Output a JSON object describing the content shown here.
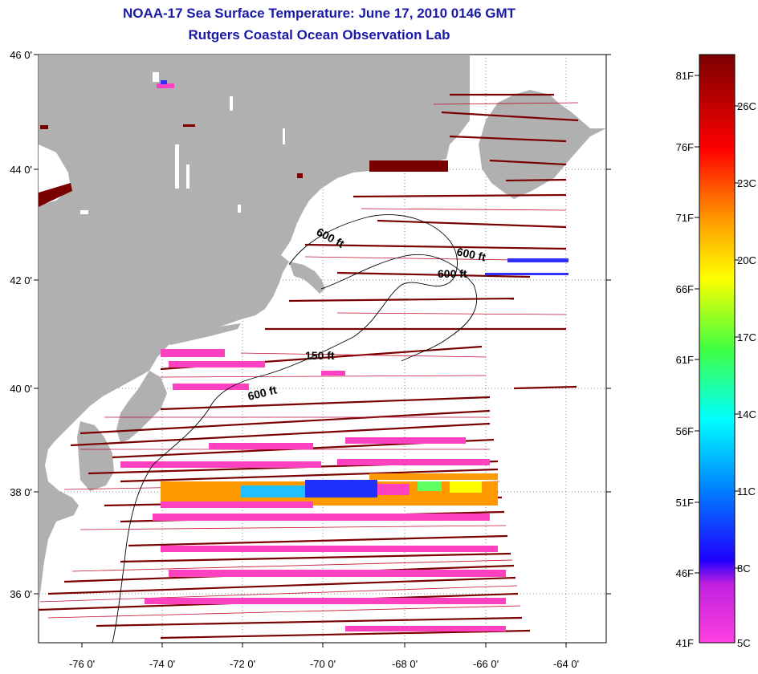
{
  "title": {
    "line1": "NOAA-17 Sea Surface Temperature:  June 17, 2010 0146 GMT",
    "line2": "Rutgers Coastal Ocean Observation Lab"
  },
  "map": {
    "lat_ticks": [
      "46 0'",
      "44 0'",
      "42 0'",
      "40 0'",
      "38 0'",
      "36 0'"
    ],
    "lon_ticks": [
      "-76 0'",
      "-74 0'",
      "-72 0'",
      "-70 0'",
      "-68 0'",
      "-66 0'",
      "-64 0'"
    ],
    "contour_labels": [
      "600 ft",
      "600 ft",
      "600 ft",
      "150 ft",
      "600 ft"
    ],
    "colors": {
      "land": "#b0b0b0",
      "water": "#ffffff",
      "hot": "#7a0000",
      "magenta": "#ff40c0"
    }
  },
  "colorbar": {
    "fahrenheit": [
      "81F",
      "76F",
      "71F",
      "66F",
      "61F",
      "56F",
      "51F",
      "46F",
      "41F"
    ],
    "celsius": [
      "26C",
      "23C",
      "20C",
      "17C",
      "14C",
      "11C",
      "8C",
      "5C"
    ]
  }
}
